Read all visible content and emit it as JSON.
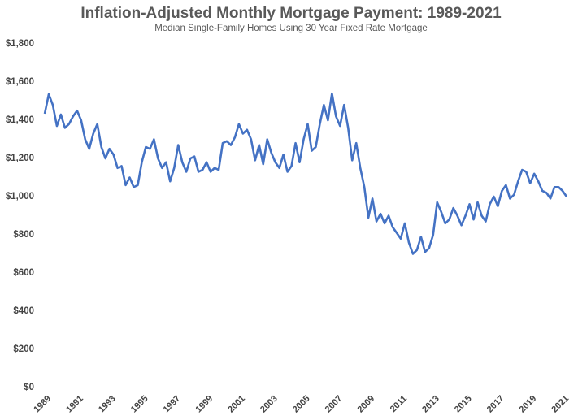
{
  "chart_data": {
    "type": "line",
    "title": "Inflation-Adjusted Monthly Mortgage Payment: 1989-2021",
    "subtitle": "Median Single-Family Homes Using 30 Year Fixed Rate Mortgage",
    "color": "#4472c4",
    "x": [
      1989,
      1989.25,
      1989.5,
      1989.75,
      1990,
      1990.25,
      1990.5,
      1990.75,
      1991,
      1991.25,
      1991.5,
      1991.75,
      1992,
      1992.25,
      1992.5,
      1992.75,
      1993,
      1993.25,
      1993.5,
      1993.75,
      1994,
      1994.25,
      1994.5,
      1994.75,
      1995,
      1995.25,
      1995.5,
      1995.75,
      1996,
      1996.25,
      1996.5,
      1996.75,
      1997,
      1997.25,
      1997.5,
      1997.75,
      1998,
      1998.25,
      1998.5,
      1998.75,
      1999,
      1999.25,
      1999.5,
      1999.75,
      2000,
      2000.25,
      2000.5,
      2000.75,
      2001,
      2001.25,
      2001.5,
      2001.75,
      2002,
      2002.25,
      2002.5,
      2002.75,
      2003,
      2003.25,
      2003.5,
      2003.75,
      2004,
      2004.25,
      2004.5,
      2004.75,
      2005,
      2005.25,
      2005.5,
      2005.75,
      2006,
      2006.25,
      2006.5,
      2006.75,
      2007,
      2007.25,
      2007.5,
      2007.75,
      2008,
      2008.25,
      2008.5,
      2008.75,
      2009,
      2009.25,
      2009.5,
      2009.75,
      2010,
      2010.25,
      2010.5,
      2010.75,
      2011,
      2011.25,
      2011.5,
      2011.75,
      2012,
      2012.25,
      2012.5,
      2012.75,
      2013,
      2013.25,
      2013.5,
      2013.75,
      2014,
      2014.25,
      2014.5,
      2014.75,
      2015,
      2015.25,
      2015.5,
      2015.75,
      2016,
      2016.25,
      2016.5,
      2016.75,
      2017,
      2017.25,
      2017.5,
      2017.75,
      2018,
      2018.25,
      2018.5,
      2018.75,
      2019,
      2019.25,
      2019.5,
      2019.75,
      2020,
      2020.25,
      2020.5,
      2020.75,
      2021,
      2021.25
    ],
    "values": [
      1434,
      1536,
      1480,
      1370,
      1430,
      1360,
      1380,
      1420,
      1450,
      1400,
      1300,
      1250,
      1330,
      1380,
      1260,
      1200,
      1250,
      1220,
      1150,
      1160,
      1060,
      1100,
      1050,
      1060,
      1180,
      1260,
      1250,
      1300,
      1200,
      1150,
      1180,
      1080,
      1150,
      1270,
      1180,
      1130,
      1200,
      1210,
      1130,
      1140,
      1180,
      1130,
      1150,
      1140,
      1280,
      1290,
      1270,
      1310,
      1380,
      1330,
      1350,
      1300,
      1190,
      1270,
      1170,
      1300,
      1230,
      1180,
      1150,
      1220,
      1130,
      1160,
      1280,
      1180,
      1300,
      1380,
      1240,
      1260,
      1380,
      1480,
      1400,
      1540,
      1420,
      1370,
      1480,
      1360,
      1190,
      1280,
      1150,
      1050,
      890,
      990,
      870,
      910,
      860,
      900,
      840,
      810,
      780,
      860,
      760,
      700,
      720,
      790,
      710,
      730,
      800,
      970,
      920,
      860,
      880,
      940,
      900,
      850,
      900,
      960,
      880,
      970,
      900,
      870,
      960,
      1000,
      950,
      1030,
      1060,
      990,
      1010,
      1080,
      1140,
      1130,
      1070,
      1120,
      1080,
      1030,
      1020,
      990,
      1050,
      1050,
      1030,
      1000
    ],
    "xlim": [
      1989,
      2021.4
    ],
    "xticks": [
      1989,
      1991,
      1993,
      1995,
      1997,
      1999,
      2001,
      2003,
      2005,
      2007,
      2009,
      2011,
      2013,
      2015,
      2017,
      2019,
      2021
    ],
    "ylim": [
      0,
      1800
    ],
    "yticks": [
      {
        "value": 0,
        "label": "$0"
      },
      {
        "value": 200,
        "label": "$200"
      },
      {
        "value": 400,
        "label": "$400"
      },
      {
        "value": 600,
        "label": "$600"
      },
      {
        "value": 800,
        "label": "$800"
      },
      {
        "value": 1000,
        "label": "$1,000"
      },
      {
        "value": 1200,
        "label": "$1,200"
      },
      {
        "value": 1400,
        "label": "$1,400"
      },
      {
        "value": 1600,
        "label": "$1,600"
      },
      {
        "value": 1800,
        "label": "$1,800"
      }
    ]
  }
}
